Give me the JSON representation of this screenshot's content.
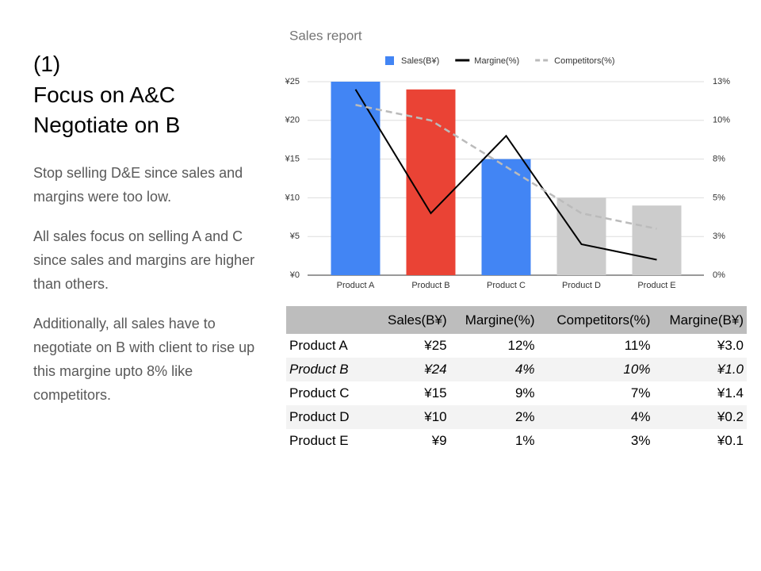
{
  "heading": [
    "(1)",
    "Focus on A&C",
    "Negotiate on B"
  ],
  "paragraphs": [
    "Stop selling D&E since sales and margins were too low.",
    "All sales focus on selling A and C since sales and margins are higher than others.",
    "Additionally, all sales have to negotiate on B with client to rise up this margine upto 8% like competitors."
  ],
  "chart_data": {
    "type": "bar",
    "title": "Sales report",
    "categories": [
      "Product A",
      "Product B",
      "Product C",
      "Product D",
      "Product E"
    ],
    "series": [
      {
        "name": "Sales(B¥)",
        "type": "bar",
        "color": "#4285f4",
        "colors": [
          "#4285f4",
          "#ea4335",
          "#4285f4",
          "#cccccc",
          "#cccccc"
        ],
        "values": [
          25,
          24,
          15,
          10,
          9
        ]
      },
      {
        "name": "Margine(%)",
        "type": "line",
        "axis": "y2",
        "color": "#000000",
        "values": [
          12,
          4,
          9,
          2,
          1
        ]
      },
      {
        "name": "Competitors(%)",
        "type": "line",
        "axis": "y2",
        "color": "#bbbbbb",
        "dashed": true,
        "values": [
          11,
          10,
          7,
          4,
          3
        ]
      }
    ],
    "ylim": [
      0,
      25
    ],
    "yticks": [
      {
        "value": 0,
        "label": "¥0"
      },
      {
        "value": 5,
        "label": "¥5"
      },
      {
        "value": 10,
        "label": "¥10"
      },
      {
        "value": 15,
        "label": "¥15"
      },
      {
        "value": 20,
        "label": "¥20"
      },
      {
        "value": 25,
        "label": "¥25"
      }
    ],
    "y2lim": [
      0,
      12.5
    ],
    "y2ticks": [
      {
        "value": 0,
        "label": "0%"
      },
      {
        "value": 2.5,
        "label": "3%"
      },
      {
        "value": 5,
        "label": "5%"
      },
      {
        "value": 7.5,
        "label": "8%"
      },
      {
        "value": 10,
        "label": "10%"
      },
      {
        "value": 12.5,
        "label": "13%"
      }
    ],
    "grid": true,
    "legend": "top"
  },
  "table": {
    "columns": [
      "Sales(B¥)",
      "Margine(%)",
      "Competitors(%)",
      "Margine(B¥)"
    ],
    "rows": [
      {
        "style": "bold",
        "cells": [
          "Product A",
          "¥25",
          "12%",
          "11%",
          "¥3.0"
        ]
      },
      {
        "style": "italic",
        "cells": [
          "Product B",
          "¥24",
          "4%",
          "10%",
          "¥1.0"
        ]
      },
      {
        "style": "bold",
        "cells": [
          "Product C",
          "¥15",
          "9%",
          "7%",
          "¥1.4"
        ]
      },
      {
        "style": "normal",
        "cells": [
          "Product D",
          "¥10",
          "2%",
          "4%",
          "¥0.2"
        ]
      },
      {
        "style": "normal",
        "cells": [
          "Product E",
          "¥9",
          "1%",
          "3%",
          "¥0.1"
        ]
      }
    ]
  }
}
